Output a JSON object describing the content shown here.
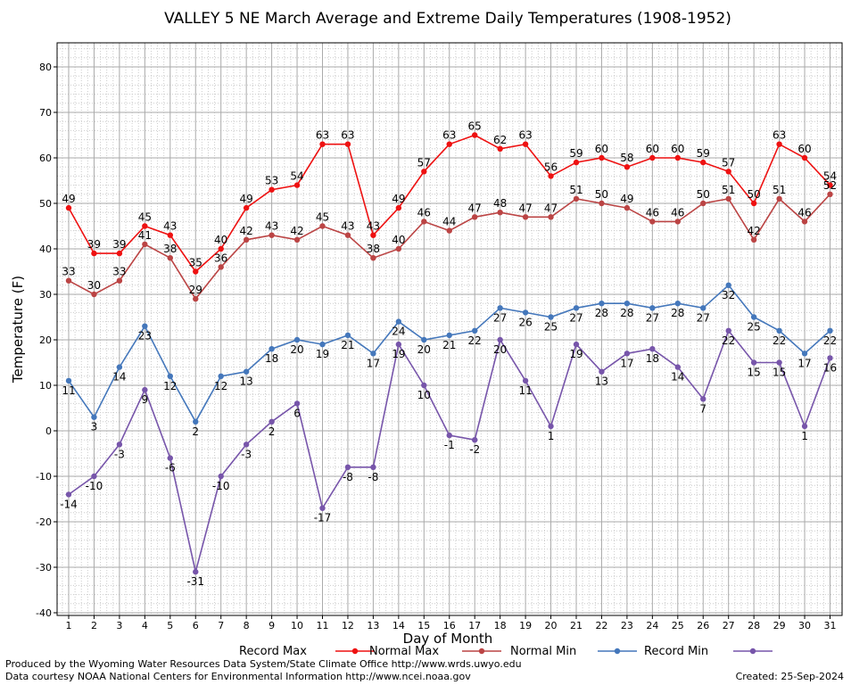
{
  "colors": {
    "record_max": "#ee1111",
    "normal_max": "#bb4444",
    "normal_min": "#4477bb",
    "record_min": "#7755aa",
    "grid_major": "#aaaaaa",
    "grid_minor": "#cccccc"
  },
  "footer": {
    "left1": "Produced by the Wyoming Water Resources Data System/State Climate Office http://www.wrds.uwyo.edu",
    "left2": "Data courtesy NOAA National Centers for Environmental Information http://www.ncei.noaa.gov",
    "created": "Created:  25-Sep-2024"
  },
  "chart_data": {
    "type": "line",
    "title": "VALLEY 5 NE March Average and Extreme Daily Temperatures (1908-1952)",
    "xlabel": "Day of Month",
    "ylabel": "Temperature (F)",
    "ylim": [
      -40,
      80
    ],
    "yticks": [
      -40,
      -30,
      -20,
      -10,
      0,
      10,
      20,
      30,
      40,
      50,
      60,
      70,
      80
    ],
    "x": [
      1,
      2,
      3,
      4,
      5,
      6,
      7,
      8,
      9,
      10,
      11,
      12,
      13,
      14,
      15,
      16,
      17,
      18,
      19,
      20,
      21,
      22,
      23,
      24,
      25,
      26,
      27,
      28,
      29,
      30,
      31
    ],
    "grid": true,
    "legend_position": "bottom",
    "series": [
      {
        "key": "record_max",
        "name": "Record Max",
        "label_pos": "above",
        "values": [
          49,
          39,
          39,
          45,
          43,
          35,
          40,
          49,
          53,
          54,
          63,
          63,
          43,
          49,
          57,
          63,
          65,
          62,
          63,
          56,
          59,
          60,
          58,
          60,
          60,
          59,
          57,
          50,
          63,
          60,
          54
        ]
      },
      {
        "key": "normal_max",
        "name": "Normal Max",
        "label_pos": "above",
        "values": [
          33,
          30,
          33,
          41,
          38,
          29,
          36,
          42,
          43,
          42,
          45,
          43,
          38,
          40,
          46,
          44,
          47,
          48,
          47,
          47,
          51,
          50,
          49,
          46,
          46,
          50,
          51,
          42,
          51,
          46,
          52
        ]
      },
      {
        "key": "normal_min",
        "name": "Normal Min",
        "label_pos": "below",
        "values": [
          11,
          3,
          14,
          23,
          12,
          2,
          12,
          13,
          18,
          20,
          19,
          21,
          17,
          24,
          20,
          21,
          22,
          27,
          26,
          25,
          27,
          28,
          28,
          27,
          28,
          27,
          32,
          25,
          22,
          17,
          22
        ]
      },
      {
        "key": "record_min",
        "name": "Record Min",
        "label_pos": "below",
        "values": [
          -14,
          -10,
          -3,
          9,
          -6,
          -31,
          -10,
          -3,
          2,
          6,
          -17,
          -8,
          -8,
          19,
          10,
          -1,
          -2,
          20,
          11,
          1,
          19,
          13,
          17,
          18,
          14,
          7,
          22,
          15,
          15,
          1,
          16
        ]
      }
    ]
  }
}
